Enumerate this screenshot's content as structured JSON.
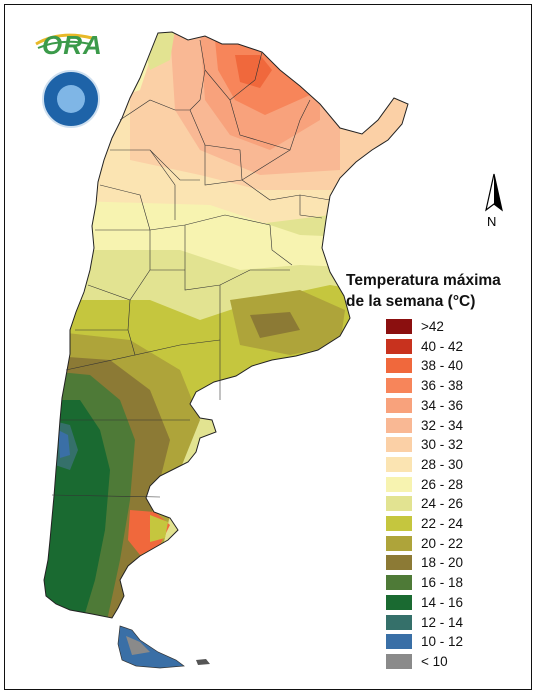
{
  "logo": {
    "text": "ORA",
    "icon": "sun-leaf-logo"
  },
  "seal": {
    "icon": "smn-seal-icon"
  },
  "north_arrow": {
    "label": "N"
  },
  "legend": {
    "title_line1": "Temperatura máxima",
    "title_line2": "de la semana (°C)",
    "items": [
      {
        "label": ">42",
        "color": "#8b0f0f"
      },
      {
        "label": "40 - 42",
        "color": "#c8321e"
      },
      {
        "label": "38 - 40",
        "color": "#f0683c"
      },
      {
        "label": "36 - 38",
        "color": "#f7855a"
      },
      {
        "label": "34 - 36",
        "color": "#f8a27c"
      },
      {
        "label": "32 - 34",
        "color": "#f9b894"
      },
      {
        "label": "30 - 32",
        "color": "#fbd0a6"
      },
      {
        "label": "28 - 30",
        "color": "#fbe4b2"
      },
      {
        "label": "26 - 28",
        "color": "#f7f3b0"
      },
      {
        "label": "24 - 26",
        "color": "#e2e391"
      },
      {
        "label": "22 - 24",
        "color": "#c5c63e"
      },
      {
        "label": "20 - 22",
        "color": "#aea43a"
      },
      {
        "label": "18 - 20",
        "color": "#8c7a35"
      },
      {
        "label": "16 - 18",
        "color": "#4e7a37"
      },
      {
        "label": "14 - 16",
        "color": "#1a6a31"
      },
      {
        "label": "12 - 14",
        "color": "#35706a"
      },
      {
        "label": "10 - 12",
        "color": "#3a6fa6"
      },
      {
        "label": "< 10",
        "color": "#8a8a8a"
      }
    ]
  }
}
